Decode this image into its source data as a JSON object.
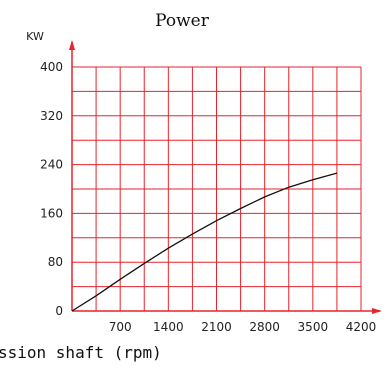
{
  "chart_data": {
    "type": "line",
    "title": "Power",
    "ylabel": "KW",
    "xlabel": "ssion shaft (rpm)",
    "x_ticks": [
      "700",
      "1400",
      "2100",
      "2800",
      "3500",
      "4200"
    ],
    "y_ticks": [
      "0",
      "80",
      "160",
      "240",
      "320",
      "400"
    ],
    "xlim": [
      0,
      4200
    ],
    "ylim": [
      0,
      400
    ],
    "grid": true,
    "grid_color": "#e8232c",
    "axis_color": "#e8232c",
    "line_color": "#111111",
    "series": [
      {
        "x": [
          0,
          350,
          700,
          1050,
          1400,
          1750,
          2100,
          2450,
          2800,
          3150,
          3500,
          3850
        ],
        "values": [
          0,
          25,
          52,
          78,
          103,
          126,
          148,
          168,
          187,
          203,
          215,
          226
        ]
      }
    ]
  }
}
